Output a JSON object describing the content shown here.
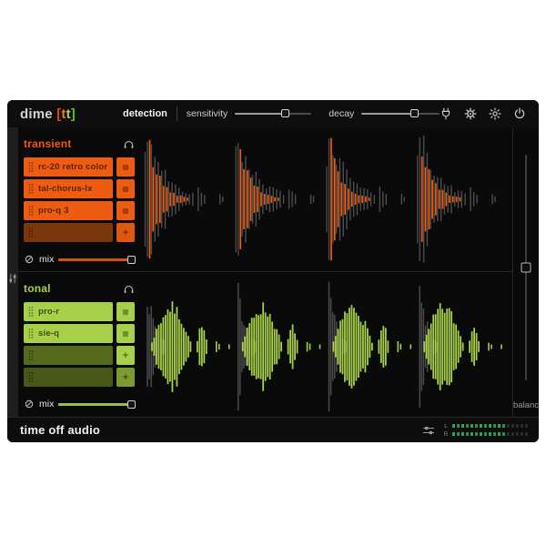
{
  "logo": {
    "word": "dime ",
    "open": "[",
    "t1": "t",
    "t2": "t",
    "close": "]"
  },
  "topbar": {
    "detection_label": "detection",
    "sensitivity": {
      "label": "sensitivity",
      "value_pct": 66
    },
    "decay": {
      "label": "decay",
      "value_pct": 68
    }
  },
  "sections": {
    "transient": {
      "title": "transient",
      "accent": "#ed5c11",
      "slots": [
        {
          "label": "rc-20 retro color",
          "bg": "#ed5c11",
          "btn": "menu",
          "btn_bg": "#ed5c11"
        },
        {
          "label": "tal-chorus-lx",
          "bg": "#ed5c11",
          "btn": "menu",
          "btn_bg": "#ed5c11"
        },
        {
          "label": "pro-q 3",
          "bg": "#ed5c11",
          "btn": "menu",
          "btn_bg": "#ed5c11"
        },
        {
          "label": "",
          "bg": "#7c370c",
          "btn": "add",
          "btn_bg": "#e05810"
        }
      ],
      "mix": {
        "label": "mix",
        "value_pct": 100,
        "track": "#d4520e"
      }
    },
    "tonal": {
      "title": "tonal",
      "accent": "#a6cf4a",
      "slots": [
        {
          "label": "pro-r",
          "bg": "#a6cf4a",
          "btn": "menu",
          "btn_bg": "#a6cf4a"
        },
        {
          "label": "sie-q",
          "bg": "#a6cf4a",
          "btn": "menu",
          "btn_bg": "#a6cf4a"
        },
        {
          "label": "",
          "bg": "#566a1e",
          "btn": "add",
          "btn_bg": "#a6cf4a"
        },
        {
          "label": "",
          "bg": "#475818",
          "btn": "add",
          "btn_bg": "#7d9a33"
        }
      ],
      "mix": {
        "label": "mix",
        "value_pct": 100,
        "track": "#95c13c"
      }
    }
  },
  "ui": {
    "add_glyph": "+"
  },
  "balance": {
    "label": "balance",
    "value_pct": 50
  },
  "bottombar": {
    "brand": "time off audio",
    "meters": {
      "segments": 17,
      "lit_color": "#2fa35c",
      "lit_color_alt": "#279351",
      "unlit_color": "#2b2b2b",
      "rows": [
        {
          "label": "L",
          "lit": 12
        },
        {
          "label": "R",
          "lit": 12
        }
      ]
    }
  },
  "waveforms": {
    "transient": {
      "bursts": 4,
      "color": "#ed5c11",
      "gray": "#4e4e4e"
    },
    "tonal": {
      "bursts": 4,
      "color": "#a6cf4a",
      "gray": "#4e4e4e"
    }
  }
}
